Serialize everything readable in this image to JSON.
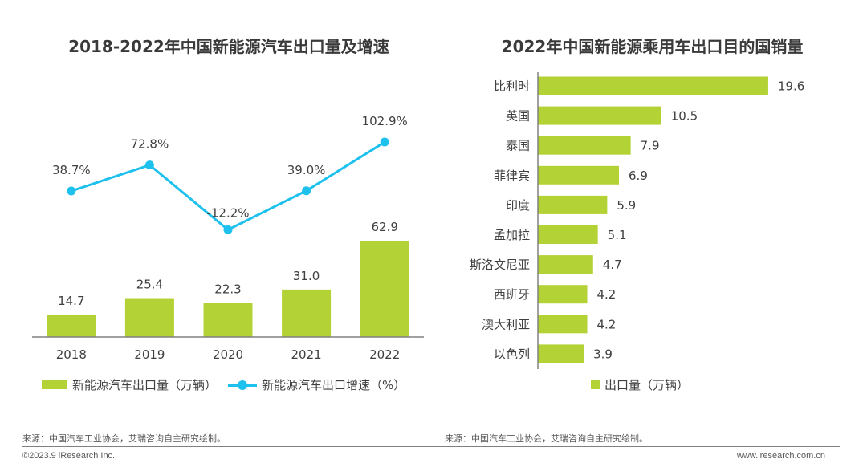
{
  "chart_data": [
    {
      "type": "bar+line",
      "title": "2018-2022年中国新能源汽车出口量及增速",
      "categories": [
        "2018",
        "2019",
        "2020",
        "2021",
        "2022"
      ],
      "series": [
        {
          "name": "新能源汽车出口量（万辆）",
          "type": "bar",
          "color": "#b3d235",
          "values": [
            14.7,
            25.4,
            22.3,
            31.0,
            62.9
          ],
          "labels": [
            "14.7",
            "25.4",
            "22.3",
            "31.0",
            "62.9"
          ]
        },
        {
          "name": "新能源汽车出口增速（%）",
          "type": "line",
          "color": "#1ec1ee",
          "values": [
            38.7,
            72.8,
            -12.2,
            39.0,
            102.9
          ],
          "labels": [
            "38.7%",
            "72.8%",
            "-12.2%",
            "39.0%",
            "102.9%"
          ]
        }
      ],
      "legend": "bottom",
      "grid": false
    },
    {
      "type": "bar",
      "orientation": "horizontal",
      "title": "2022年中国新能源乘用车出口目的国销量",
      "categories": [
        "比利时",
        "英国",
        "泰国",
        "菲律宾",
        "印度",
        "孟加拉",
        "斯洛文尼亚",
        "西班牙",
        "澳大利亚",
        "以色列"
      ],
      "series": [
        {
          "name": "出口量（万辆）",
          "color": "#b3d235",
          "values": [
            19.6,
            10.5,
            7.9,
            6.9,
            5.9,
            5.1,
            4.7,
            4.2,
            4.2,
            3.9
          ],
          "labels": [
            "19.6",
            "10.5",
            "7.9",
            "6.9",
            "5.9",
            "5.1",
            "4.7",
            "4.2",
            "4.2",
            "3.9"
          ]
        }
      ],
      "legend": "bottom",
      "grid": false
    }
  ],
  "titles": {
    "left": "2018-2022年中国新能源汽车出口量及增速",
    "right": "2022年中国新能源乘用车出口目的国销量"
  },
  "legends": {
    "left_bar": "新能源汽车出口量（万辆）",
    "left_line": "新能源汽车出口增速（%）",
    "right_bar": "出口量（万辆）"
  },
  "source": {
    "left": "来源：中国汽车工业协会，艾瑞咨询自主研究绘制。",
    "right": "来源：中国汽车工业协会，艾瑞咨询自主研究绘制。"
  },
  "footer": {
    "copyright": "©2023.9 iResearch Inc.",
    "website": "www.iresearch.com.cn"
  }
}
